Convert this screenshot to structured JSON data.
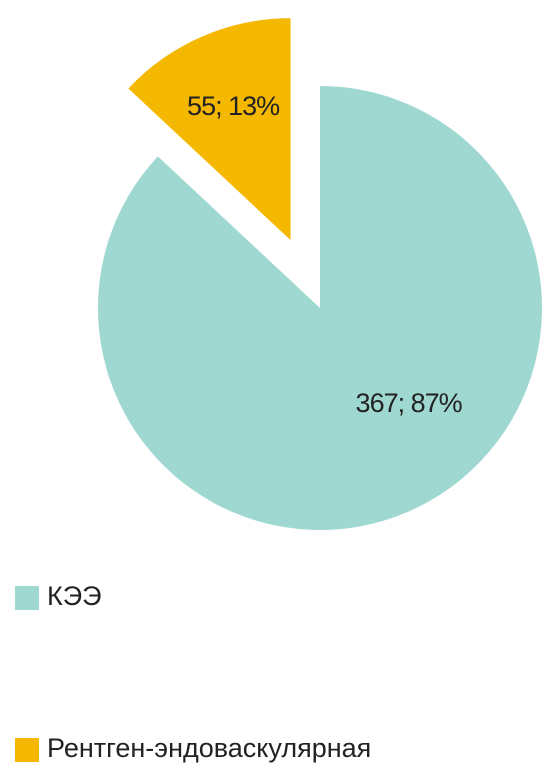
{
  "chart_data": {
    "type": "pie",
    "categories": [
      "КЭЭ",
      "Рентген-эндоваскулярная"
    ],
    "values": [
      367,
      55
    ],
    "value_labels": [
      "367; 87%",
      "55; 13%"
    ],
    "colors": [
      "#9fd8d0",
      "#f5b800"
    ],
    "exploded": [
      false,
      true
    ],
    "legend": "bottom"
  }
}
